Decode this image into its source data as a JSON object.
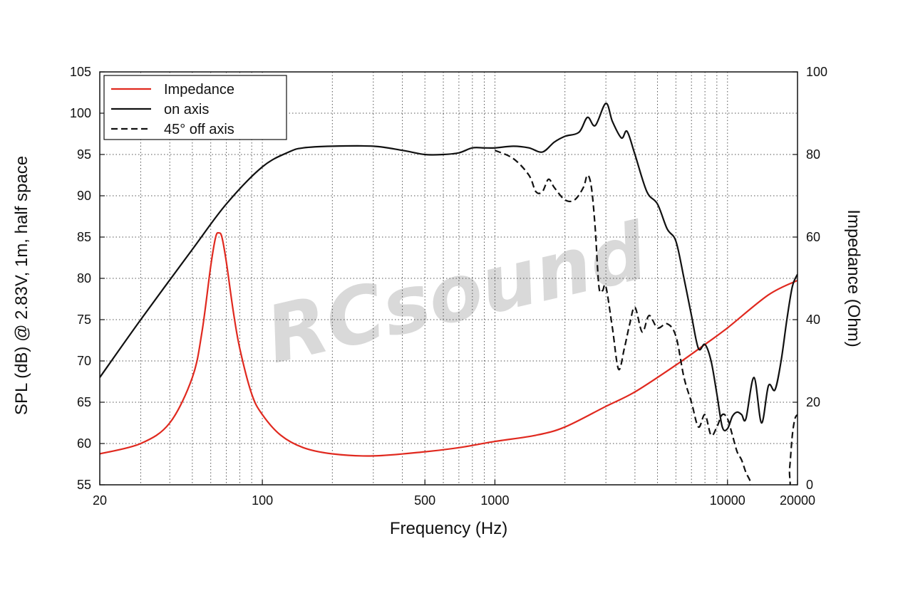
{
  "chart_data": {
    "type": "line",
    "title": "",
    "xlabel": "Frequency (Hz)",
    "ylabel": "SPL (dB) @ 2.83V, 1m, half space",
    "y2label": "Impedance (Ohm)",
    "xscale": "log",
    "xlim": [
      20,
      20000
    ],
    "ylim": [
      55,
      105
    ],
    "y2lim": [
      0,
      100
    ],
    "grid": true,
    "legend": "top-left",
    "watermark": "RCsound",
    "x_ticks": [
      {
        "value": 20,
        "label": "20"
      },
      {
        "value": 100,
        "label": "100"
      },
      {
        "value": 500,
        "label": "500"
      },
      {
        "value": 1000,
        "label": "1000"
      },
      {
        "value": 10000,
        "label": "10000"
      },
      {
        "value": 20000,
        "label": "20000"
      }
    ],
    "y_ticks": [
      {
        "value": 105,
        "label": "105"
      },
      {
        "value": 100,
        "label": "100"
      },
      {
        "value": 95,
        "label": "95"
      },
      {
        "value": 90,
        "label": "90"
      },
      {
        "value": 85,
        "label": "85"
      },
      {
        "value": 80,
        "label": "80"
      },
      {
        "value": 75,
        "label": "75"
      },
      {
        "value": 70,
        "label": "70"
      },
      {
        "value": 65,
        "label": "65"
      },
      {
        "value": 60,
        "label": "60"
      },
      {
        "value": 55,
        "label": "55"
      }
    ],
    "y2_ticks": [
      {
        "value": 100,
        "label": "100"
      },
      {
        "value": 80,
        "label": "80"
      },
      {
        "value": 60,
        "label": "60"
      },
      {
        "value": 40,
        "label": "40"
      },
      {
        "value": 20,
        "label": "20"
      },
      {
        "value": 0,
        "label": "0"
      }
    ],
    "series": [
      {
        "name": "Impedance",
        "axis": "right",
        "color": "#e0291f",
        "style": "solid",
        "x": [
          20,
          30,
          40,
          50,
          55,
          60,
          63,
          65,
          67,
          70,
          75,
          80,
          90,
          100,
          120,
          150,
          200,
          300,
          500,
          700,
          1000,
          1500,
          2000,
          3000,
          4000,
          6000,
          8000,
          10000,
          15000,
          20000
        ],
        "y": [
          7.5,
          10,
          15,
          26,
          37,
          53,
          60,
          61,
          60,
          54,
          42,
          33,
          22,
          17,
          12,
          9,
          7.5,
          7,
          8,
          9,
          10.5,
          12,
          14,
          19,
          22.5,
          29,
          34,
          38,
          46,
          49.5
        ]
      },
      {
        "name": "on axis",
        "axis": "left",
        "color": "#111111",
        "style": "solid",
        "x": [
          20,
          30,
          50,
          70,
          100,
          130,
          150,
          200,
          300,
          400,
          500,
          600,
          700,
          800,
          900,
          1000,
          1200,
          1400,
          1600,
          1800,
          2000,
          2300,
          2500,
          2700,
          3000,
          3200,
          3500,
          3700,
          4000,
          4500,
          5000,
          5500,
          6000,
          6500,
          7000,
          7500,
          8000,
          8500,
          9000,
          9500,
          10000,
          10500,
          11000,
          11500,
          12000,
          13000,
          14000,
          15000,
          16000,
          17000,
          18000,
          19000,
          20000
        ],
        "y": [
          68,
          75,
          83.5,
          89,
          93.5,
          95.3,
          95.8,
          96,
          96,
          95.5,
          95,
          95,
          95.2,
          95.8,
          95.8,
          95.8,
          96,
          95.8,
          95.3,
          96.5,
          97.2,
          97.7,
          99.5,
          98.5,
          101.2,
          99,
          97,
          97.8,
          95,
          90.5,
          89,
          86,
          84.5,
          80,
          75.5,
          71.5,
          72,
          70,
          66,
          62,
          61.8,
          63.3,
          63.8,
          63.5,
          63,
          68,
          62.5,
          67,
          66.5,
          70,
          75,
          79,
          80.5
        ]
      },
      {
        "name": "45° off axis",
        "axis": "left",
        "color": "#111111",
        "style": "dashed",
        "x": [
          1000,
          1200,
          1400,
          1500,
          1600,
          1700,
          1800,
          2000,
          2200,
          2400,
          2500,
          2600,
          2700,
          2800,
          2900,
          3000,
          3200,
          3400,
          3600,
          3800,
          4000,
          4300,
          4600,
          5000,
          5500,
          6000,
          6500,
          7000,
          7500,
          8000,
          8500,
          9000,
          9500,
          10000,
          10500,
          11000,
          11500,
          12000,
          12500,
          13000,
          18000,
          18500,
          19000,
          19500,
          20000
        ],
        "y": [
          95.5,
          94.5,
          92.5,
          90.5,
          90.5,
          92,
          91,
          89.5,
          89.5,
          91,
          92.5,
          91,
          86,
          79,
          78.5,
          79,
          74,
          69,
          71.5,
          74.5,
          76.5,
          73.5,
          75.5,
          74,
          74.5,
          73,
          68,
          65,
          62,
          63.5,
          61,
          62,
          63.5,
          63,
          61,
          59,
          58,
          56.5,
          55.5,
          54,
          54,
          57,
          61,
          63,
          63.5
        ]
      }
    ]
  }
}
